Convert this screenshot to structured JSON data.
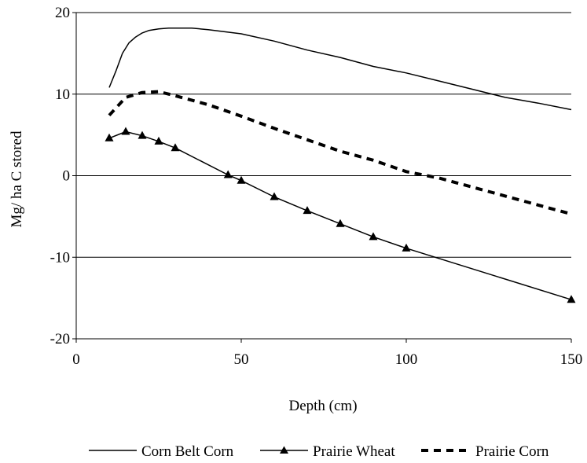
{
  "chart_data": {
    "type": "line",
    "title": "",
    "xlabel": "Depth (cm)",
    "ylabel": "Mg/ ha C stored",
    "xlim": [
      0,
      150
    ],
    "ylim": [
      -20,
      20
    ],
    "x_ticks": [
      0,
      50,
      100,
      150
    ],
    "x_tick_labels": [
      "0",
      "50",
      "100",
      "150"
    ],
    "y_ticks": [
      -20,
      -10,
      0,
      10,
      20
    ],
    "y_tick_labels": [
      "-20",
      "-10",
      "0",
      "10",
      "20"
    ],
    "grid": "horizontal major gridlines",
    "legend_position": "bottom",
    "series": [
      {
        "name": "Corn Belt Corn",
        "style": "solid",
        "marker": "none",
        "color": "#000000",
        "x": [
          10,
          12,
          14,
          16,
          18,
          20,
          22,
          25,
          28,
          30,
          35,
          40,
          50,
          60,
          70,
          80,
          90,
          100,
          110,
          120,
          130,
          140,
          150
        ],
        "y": [
          10.8,
          12.8,
          15.0,
          16.3,
          17.0,
          17.5,
          17.8,
          18.0,
          18.1,
          18.1,
          18.1,
          17.9,
          17.4,
          16.5,
          15.4,
          14.5,
          13.4,
          12.6,
          11.6,
          10.6,
          9.6,
          8.9,
          8.1
        ]
      },
      {
        "name": "Prairie Wheat",
        "style": "solid",
        "marker": "triangle",
        "color": "#000000",
        "x": [
          10,
          15,
          20,
          25,
          30,
          46,
          50,
          60,
          70,
          80,
          90,
          100,
          150
        ],
        "y": [
          4.6,
          5.4,
          4.9,
          4.2,
          3.4,
          0.1,
          -0.6,
          -2.6,
          -4.3,
          -5.9,
          -7.5,
          -8.9,
          -15.2
        ]
      },
      {
        "name": "Prairie Corn",
        "style": "dashed",
        "marker": "none",
        "color": "#000000",
        "x": [
          10,
          15,
          20,
          25,
          30,
          40,
          50,
          60,
          70,
          80,
          90,
          100,
          110,
          120,
          130,
          140,
          150
        ],
        "y": [
          7.4,
          9.6,
          10.2,
          10.3,
          9.8,
          8.7,
          7.3,
          5.8,
          4.4,
          3.0,
          1.9,
          0.5,
          -0.3,
          -1.4,
          -2.5,
          -3.6,
          -4.7
        ]
      }
    ]
  }
}
